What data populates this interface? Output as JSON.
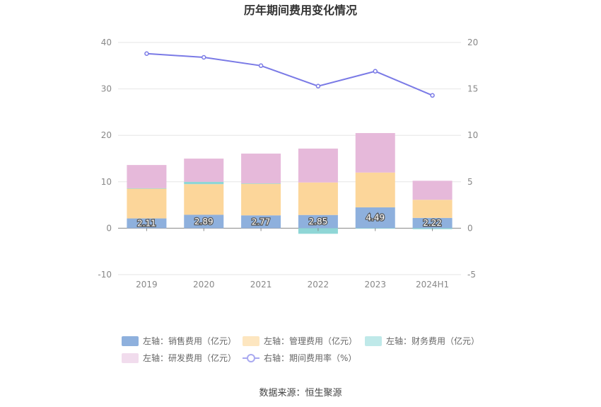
{
  "chart_data": {
    "type": "bar",
    "stacked": true,
    "title": "历年期间费用变化情况",
    "categories": [
      "2019",
      "2020",
      "2021",
      "2022",
      "2023",
      "2024H1"
    ],
    "left_axis": {
      "ylim": [
        -10,
        40
      ],
      "ticks": [
        -10,
        0,
        10,
        20,
        30,
        40
      ]
    },
    "right_axis": {
      "ylim": [
        -5,
        20
      ],
      "ticks": [
        -5,
        0,
        5,
        10,
        15,
        20
      ]
    },
    "grid": true,
    "legend_position": "bottom",
    "series": [
      {
        "name": "左轴：销售费用（亿元）",
        "axis": "left",
        "type": "bar",
        "color": "#8eb0dd",
        "legend_color": "#8eb0dd",
        "values": [
          2.11,
          2.89,
          2.77,
          2.85,
          4.49,
          2.22
        ],
        "show_labels": true
      },
      {
        "name": "左轴：管理费用（亿元）",
        "axis": "left",
        "type": "bar",
        "color": "#fcd69a",
        "legend_color": "#fde6c0",
        "values": [
          6.4,
          6.6,
          6.8,
          7.0,
          7.5,
          3.9
        ],
        "show_labels": false
      },
      {
        "name": "左轴：财务费用（亿元）",
        "axis": "left",
        "type": "bar",
        "color": "#8fd6d6",
        "legend_color": "#bfe9e9",
        "values": [
          0.1,
          0.5,
          0.1,
          -1.2,
          -0.1,
          -0.2
        ],
        "show_labels": false
      },
      {
        "name": "左轴：研发费用（亿元）",
        "axis": "left",
        "type": "bar",
        "color": "#e6b9da",
        "legend_color": "#f1dced",
        "values": [
          5.0,
          5.0,
          6.4,
          7.3,
          8.5,
          4.1
        ],
        "show_labels": false
      },
      {
        "name": "右轴：期间费用率（%）",
        "axis": "right",
        "type": "line",
        "color": "#7a7ae6",
        "legend_color": "#a9a9f0",
        "values": [
          18.8,
          18.4,
          17.5,
          15.3,
          16.9,
          14.3
        ],
        "show_labels": false
      }
    ]
  },
  "footer": {
    "source": "数据来源：恒生聚源"
  }
}
